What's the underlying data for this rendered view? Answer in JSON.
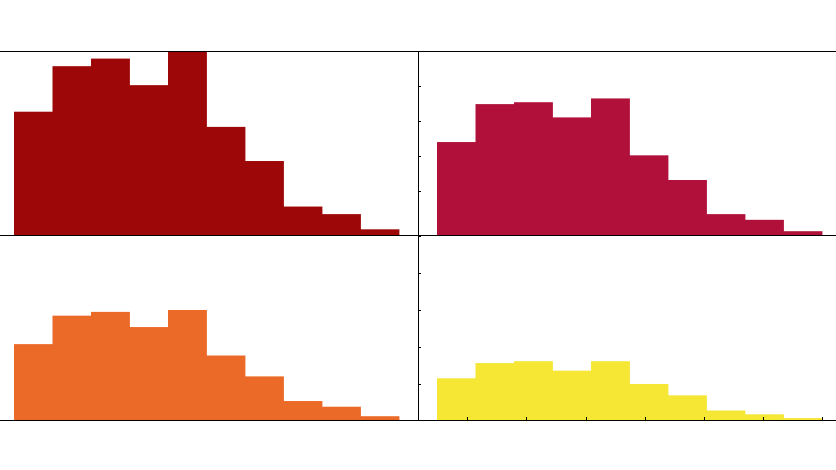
{
  "chart_data": [
    {
      "type": "bar",
      "panel": "top-left",
      "color": "#9e0707",
      "bins": 10,
      "values": [
        65,
        89,
        93,
        79,
        97,
        57,
        39,
        15,
        11,
        3
      ],
      "ylim": [
        0,
        97
      ],
      "grid": false
    },
    {
      "type": "bar",
      "panel": "top-right",
      "color": "#b0103a",
      "bins": 10,
      "values": [
        49,
        69,
        70,
        62,
        72,
        42,
        29,
        11,
        8,
        2
      ],
      "ylim": [
        0,
        97
      ],
      "grid": false
    },
    {
      "type": "bar",
      "panel": "bottom-left",
      "color": "#ec6a28",
      "bins": 10,
      "values": [
        40,
        55,
        57,
        49,
        58,
        34,
        23,
        10,
        7,
        2
      ],
      "ylim": [
        0,
        97
      ],
      "grid": false
    },
    {
      "type": "bar",
      "panel": "bottom-right",
      "color": "#f5e733",
      "bins": 10,
      "values": [
        22,
        30,
        31,
        26,
        31,
        19,
        13,
        5,
        3,
        1
      ],
      "ylim": [
        0,
        97
      ],
      "grid": false
    }
  ]
}
